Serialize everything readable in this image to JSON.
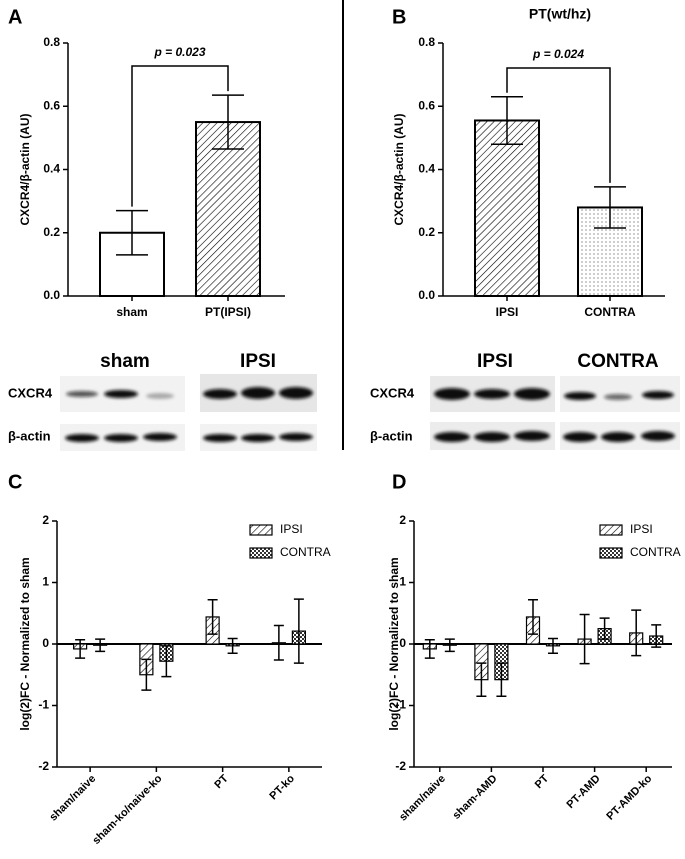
{
  "chart_data": [
    {
      "type": "bar",
      "panel": "A",
      "categories": [
        "sham",
        "PT(IPSI)"
      ],
      "values": [
        0.2,
        0.55
      ],
      "errors": [
        0.07,
        0.085
      ],
      "patterns": [
        "none",
        "hatch"
      ],
      "color": "#000000",
      "ylabel": "CXCR4/β-actin (AU)",
      "ylim": [
        0,
        0.8
      ],
      "yticks": [
        {
          "value": 0,
          "label": "0.0"
        },
        0.2,
        0.4,
        0.6,
        0.8
      ],
      "annotation": "p = 0.023"
    },
    {
      "type": "bar",
      "panel": "B",
      "title": "PT(wt/hz)",
      "categories": [
        "IPSI",
        "CONTRA"
      ],
      "values": [
        0.555,
        0.28
      ],
      "errors": [
        0.075,
        0.065
      ],
      "patterns": [
        "hatch",
        "dots"
      ],
      "color": "#000000",
      "ylabel": "CXCR4/β-actin (AU)",
      "ylim": [
        0,
        0.8
      ],
      "yticks": [
        {
          "value": 0,
          "label": "0.0"
        },
        0.2,
        0.4,
        0.6,
        0.8
      ],
      "annotation": "p = 0.024"
    },
    {
      "type": "grouped_bar",
      "panel": "C",
      "categories": [
        "sham/naive",
        "sham-ko/naive-ko",
        "PT",
        "PT-ko"
      ],
      "series": [
        {
          "name": "IPSI",
          "pattern": "hatch",
          "color": "#000000",
          "values": [
            -0.08,
            -0.5,
            0.44,
            0.02
          ],
          "errors": [
            0.15,
            0.25,
            0.28,
            0.28
          ]
        },
        {
          "name": "CONTRA",
          "pattern": "checker",
          "color": "#000000",
          "values": [
            -0.02,
            -0.28,
            -0.03,
            0.21
          ],
          "errors": [
            0.1,
            0.25,
            0.12,
            0.52
          ]
        }
      ],
      "ylabel": "log(2)FC - Normalized to sham",
      "ylim": [
        -2,
        2
      ],
      "yticks": [
        -2,
        -1,
        0,
        1,
        2
      ],
      "legend": "upper right"
    },
    {
      "type": "grouped_bar",
      "panel": "D",
      "categories": [
        "sham/naive",
        "sham-AMD",
        "PT",
        "PT-AMD",
        "PT-AMD-ko"
      ],
      "series": [
        {
          "name": "IPSI",
          "pattern": "hatch",
          "color": "#000000",
          "values": [
            -0.08,
            -0.58,
            0.44,
            0.08,
            0.18
          ],
          "errors": [
            0.15,
            0.27,
            0.28,
            0.4,
            0.37
          ]
        },
        {
          "name": "CONTRA",
          "pattern": "checker",
          "color": "#000000",
          "values": [
            -0.02,
            -0.58,
            -0.03,
            0.25,
            0.13
          ],
          "errors": [
            0.1,
            0.27,
            0.12,
            0.17,
            0.18
          ]
        }
      ],
      "ylabel": "log(2)FC - Normalized to sham",
      "ylim": [
        -2,
        2
      ],
      "yticks": [
        -2,
        -1,
        0,
        1,
        2
      ],
      "legend": "upper right"
    }
  ],
  "blots": [
    {
      "groups": [
        "sham",
        "IPSI"
      ],
      "rows": [
        "CXCR4",
        "β-actin"
      ]
    },
    {
      "groups": [
        "IPSI",
        "CONTRA"
      ],
      "rows": [
        "CXCR4",
        "β-actin"
      ]
    }
  ]
}
